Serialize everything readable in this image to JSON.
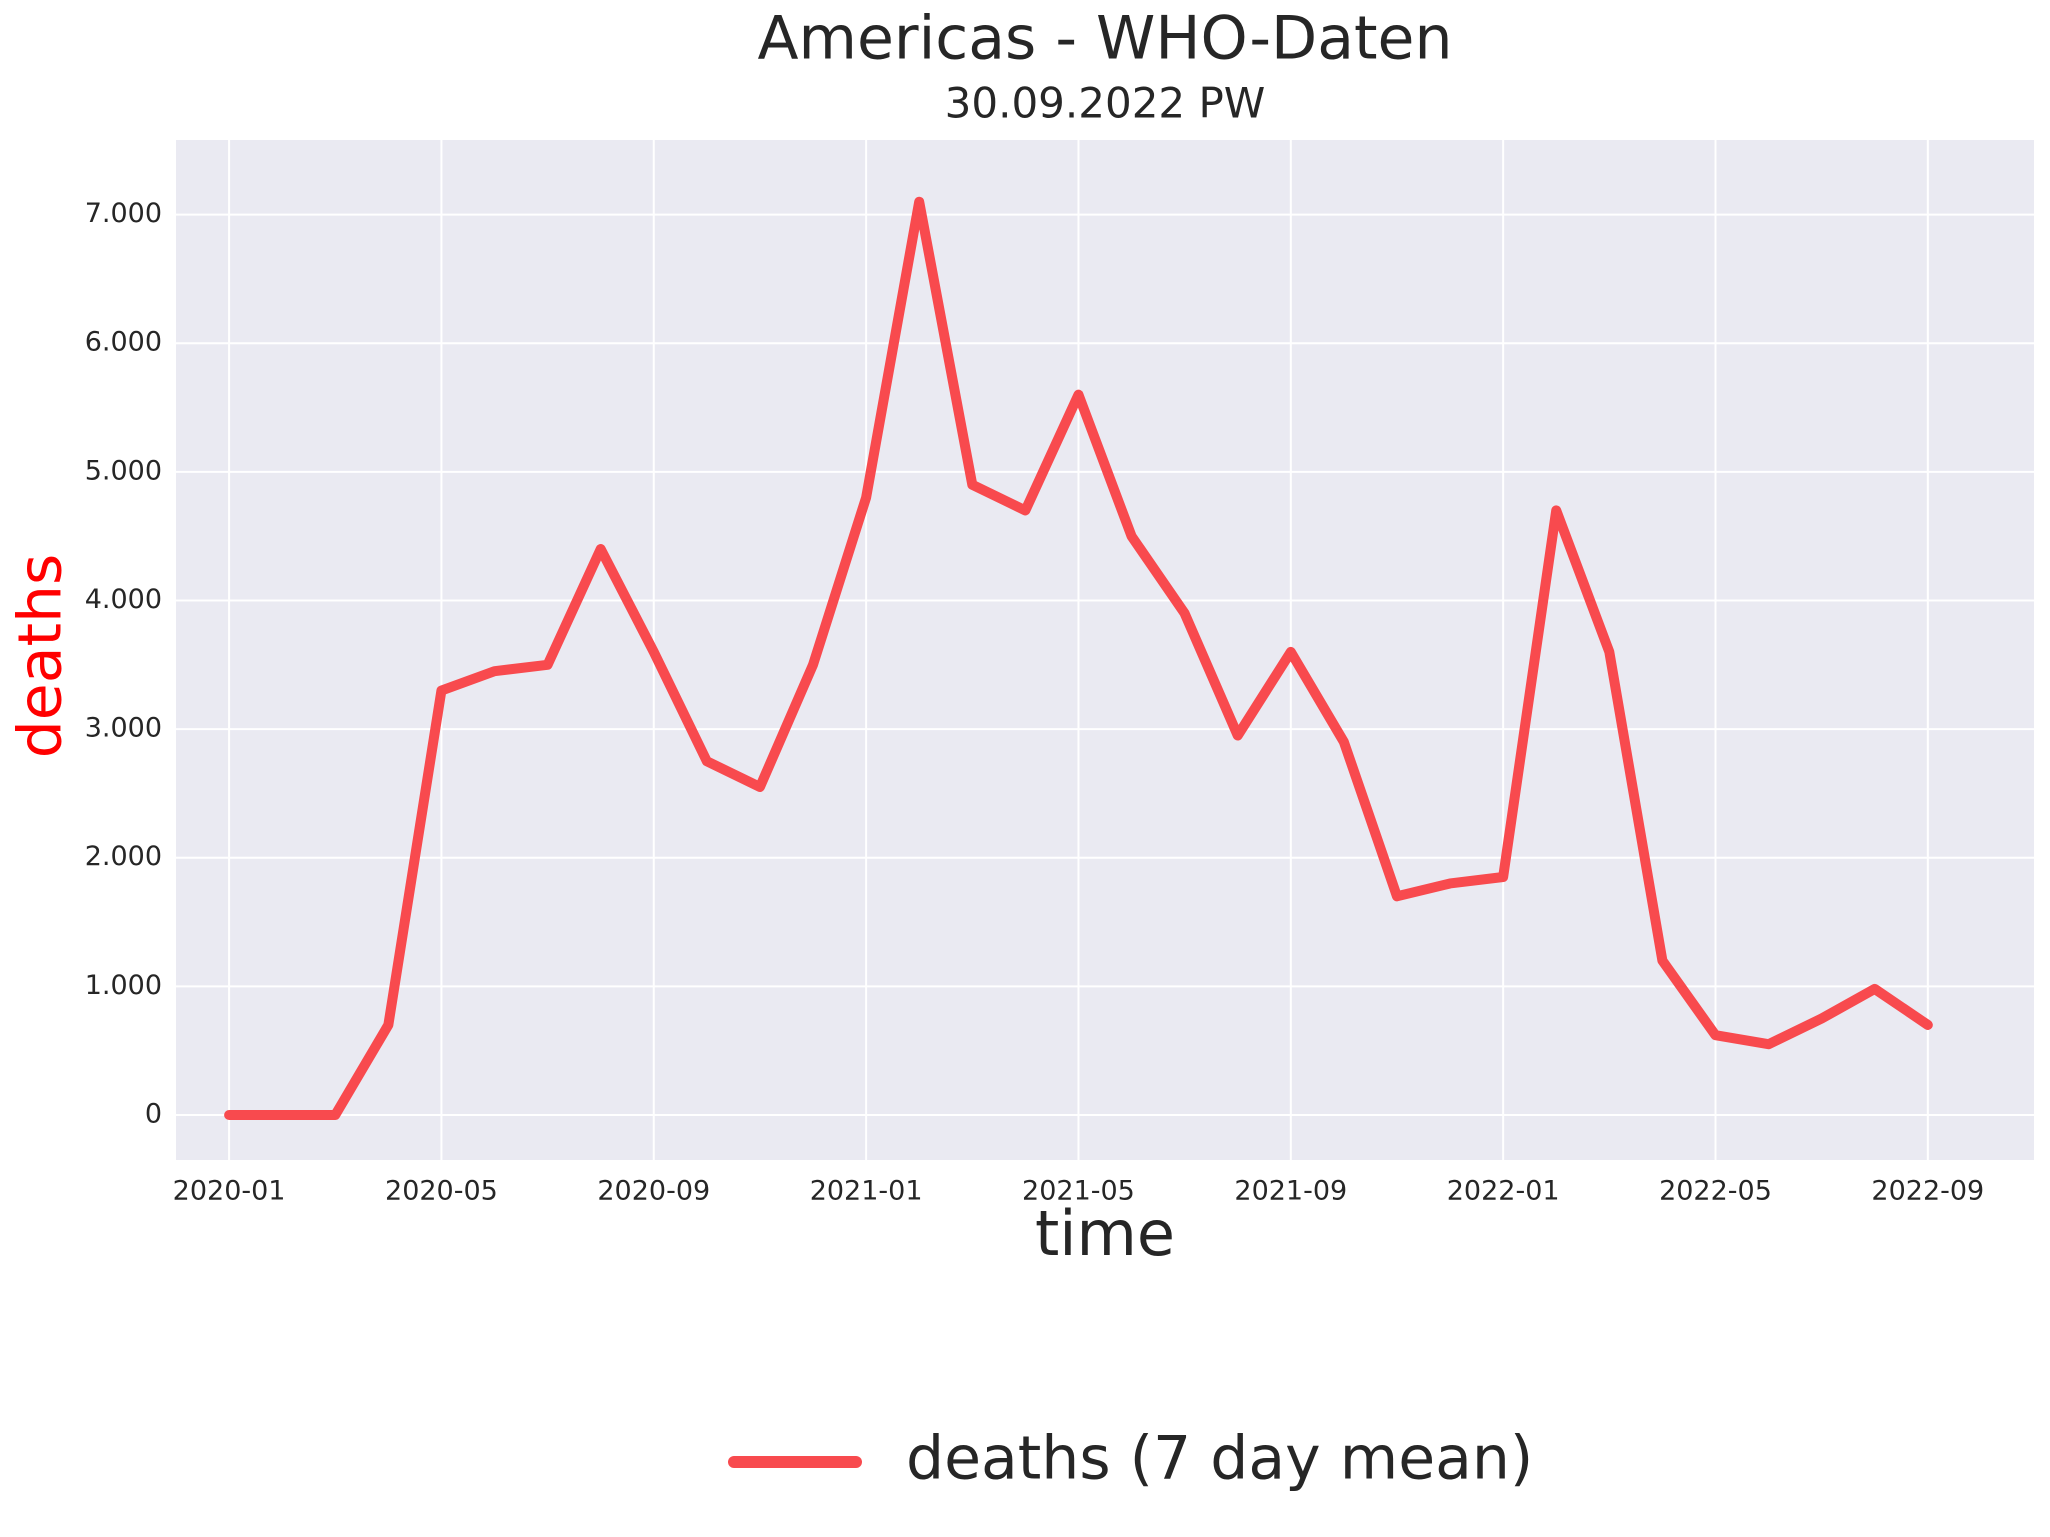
{
  "chart_data": {
    "type": "line",
    "title": "Americas - WHO-Daten",
    "subtitle": "30.09.2022 PW",
    "x_label": "time",
    "y_label": "deaths",
    "y_label_color": "#ff0000",
    "x": [
      "2020-01",
      "2020-02",
      "2020-03",
      "2020-04",
      "2020-05",
      "2020-06",
      "2020-07",
      "2020-08",
      "2020-09",
      "2020-10",
      "2020-11",
      "2020-12",
      "2021-01",
      "2021-02",
      "2021-03",
      "2021-04",
      "2021-05",
      "2021-06",
      "2021-07",
      "2021-08",
      "2021-09",
      "2021-10",
      "2021-11",
      "2021-12",
      "2022-01",
      "2022-02",
      "2022-03",
      "2022-04",
      "2022-05",
      "2022-06",
      "2022-07",
      "2022-08",
      "2022-09"
    ],
    "series": [
      {
        "name": "deaths (7 day mean)",
        "color": "#f84a4e",
        "values": [
          0,
          0,
          0,
          700,
          3300,
          3450,
          3500,
          4400,
          3600,
          2750,
          2550,
          3500,
          4800,
          7100,
          4900,
          4700,
          5600,
          4500,
          3900,
          2950,
          3600,
          2900,
          1700,
          1800,
          1850,
          4700,
          3600,
          1200,
          620,
          550,
          750,
          980,
          700
        ]
      }
    ],
    "xlim": [
      "2019-12",
      "2022-11"
    ],
    "xticks": [
      "2020-01",
      "2020-05",
      "2020-09",
      "2021-01",
      "2021-05",
      "2021-09",
      "2022-01",
      "2022-05",
      "2022-09"
    ],
    "ylim": [
      -350,
      7580
    ],
    "yticks": [
      0,
      {
        "value": 1000,
        "label": "1.000"
      },
      {
        "value": 2000,
        "label": "2.000"
      },
      {
        "value": 3000,
        "label": "3.000"
      },
      {
        "value": 4000,
        "label": "4.000"
      },
      {
        "value": 5000,
        "label": "5.000"
      },
      {
        "value": 6000,
        "label": "6.000"
      },
      {
        "value": 7000,
        "label": "7.000"
      }
    ],
    "grid": true,
    "legend": "bottom"
  }
}
